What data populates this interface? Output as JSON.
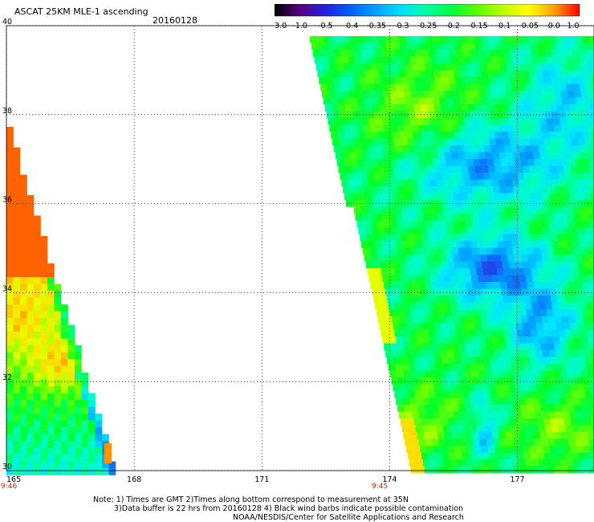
{
  "header": {
    "title": "ASCAT 25KM MLE-1 ascending",
    "date": "20160128"
  },
  "colorbar": {
    "labels": [
      "-3.0",
      "-1.0",
      "-0.5",
      "-0.4",
      "-0.35",
      "-0.3",
      "-0.25",
      "-0.2",
      "-0.15",
      "-0.1",
      "-0.05",
      "0.0",
      "1.0"
    ],
    "colors": [
      "#000000",
      "#5a0080",
      "#2020e0",
      "#0060ff",
      "#00a0ff",
      "#00e0ff",
      "#00ffa0",
      "#00ff40",
      "#60ff00",
      "#c0ff00",
      "#ffff00",
      "#ffa000",
      "#ff0000"
    ]
  },
  "map": {
    "lon_ticks": [
      "165",
      "168",
      "171",
      "174",
      "177"
    ],
    "lat_ticks": [
      "40",
      "38",
      "36",
      "34",
      "32",
      "30"
    ],
    "lon_range": [
      165,
      178.8
    ],
    "lat_range": [
      30,
      40
    ],
    "grid": "dotted"
  },
  "times": {
    "left_swath": "9:46",
    "right_swath": "9:45"
  },
  "notes": {
    "line1": "Note: 1) Times are GMT 2)Times along bottom correspond to measurement at 35N",
    "line2": "3)Data buffer is 22 hrs from 20160128 4) Black wind barbs indicate possible contamination",
    "line3": "NOAA/NESDIS/Center for Satellite Applications and Research"
  }
}
